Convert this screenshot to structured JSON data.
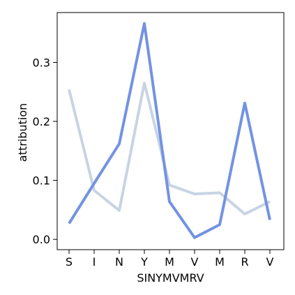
{
  "chart_data": {
    "type": "line",
    "title": "",
    "xlabel": "SINYMVMRV",
    "ylabel": "attribution",
    "categories": [
      "S",
      "I",
      "N",
      "Y",
      "M",
      "V",
      "M",
      "R",
      "V"
    ],
    "yticks": [
      "0.0",
      "0.1",
      "0.2",
      "0.3"
    ],
    "ylim": [
      -0.0175,
      0.3845
    ],
    "grid": false,
    "series": [
      {
        "color": "#c8d4e4",
        "values": [
          0.254,
          0.083,
          0.049,
          0.265,
          0.092,
          0.077,
          0.079,
          0.043,
          0.064
        ]
      },
      {
        "color": "#7393e2",
        "values": [
          0.027,
          0.095,
          0.162,
          0.366,
          0.064,
          0.003,
          0.025,
          0.231,
          0.033
        ]
      }
    ]
  }
}
